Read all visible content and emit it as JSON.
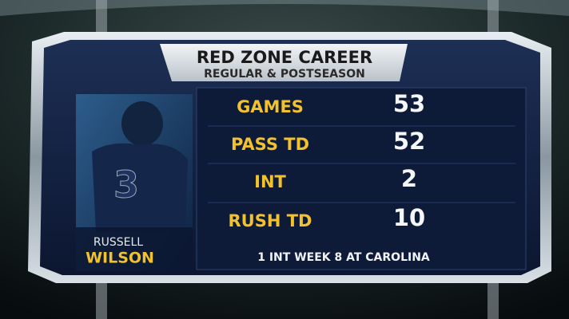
{
  "header": {
    "title": "RED ZONE CAREER",
    "subtitle": "REGULAR & POSTSEASON"
  },
  "player": {
    "first_name": "RUSSELL",
    "last_name": "WILSON"
  },
  "stats": [
    {
      "label": "GAMES",
      "value": "53"
    },
    {
      "label": "PASS TD",
      "value": "52"
    },
    {
      "label": "INT",
      "value": "2"
    },
    {
      "label": "RUSH TD",
      "value": "10"
    }
  ],
  "footnote": "1 INT WEEK 8 AT CAROLINA"
}
